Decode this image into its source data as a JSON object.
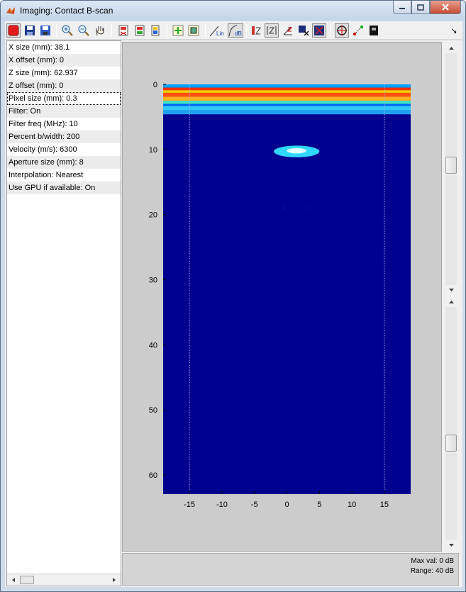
{
  "window": {
    "title": "Imaging: Contact B-scan",
    "app_icon": "matlab-icon",
    "buttons": [
      "minimize-icon",
      "maximize-icon",
      "close-icon"
    ]
  },
  "toolbar": {
    "items": [
      "record-icon",
      "save-as-icon",
      "save-icon",
      "zoom-in-icon",
      "zoom-out-icon",
      "pan-hand-icon",
      "export-figure-icon",
      "copy-figure-icon",
      "colorbar-icon",
      "data-cursor-icon",
      "select-region-icon",
      "linear-scale-icon",
      "db-scale-icon",
      "normalize-z-icon",
      "z-scale-icon",
      "angle-icon",
      "clear-mask-icon",
      "mask-icon",
      "crosshair-icon",
      "measure-icon",
      "colormap-icon"
    ],
    "labels": {
      "lin": "Lin",
      "db": "dB"
    },
    "expand_glyph": "↘"
  },
  "parameters": [
    {
      "label": "X size (mm): 38.1"
    },
    {
      "label": "X offset (mm): 0"
    },
    {
      "label": "Z size (mm): 62.937"
    },
    {
      "label": "Z offset (mm): 0"
    },
    {
      "label": "Pixel size (mm): 0.3"
    },
    {
      "label": "Filter: On"
    },
    {
      "label": "Filter freq (MHz): 10"
    },
    {
      "label": "Percent b/width: 200"
    },
    {
      "label": "Velocity (m/s): 6300"
    },
    {
      "label": "Aperture size (mm): 8"
    },
    {
      "label": "Interpolation: Nearest"
    },
    {
      "label": "Use GPU if available: On"
    }
  ],
  "selected_parameter": "Pixel size (mm): 0.3",
  "status": {
    "max_val": "Max val: 0 dB",
    "range": "Range: 40 dB"
  },
  "chart_data": {
    "type": "heatmap",
    "title": "",
    "xlabel": "",
    "ylabel": "",
    "xlim": [
      -19.05,
      19.05
    ],
    "ylim": [
      62.937,
      0
    ],
    "x_ticks": [
      -15,
      -10,
      -5,
      0,
      5,
      10,
      15
    ],
    "y_ticks": [
      0,
      10,
      20,
      30,
      40,
      50,
      60
    ],
    "colormap": "jet",
    "background_color": "#00008f",
    "guide_lines_x": [
      -15,
      15
    ],
    "bands": [
      {
        "z_from": 0.0,
        "z_to": 0.5,
        "color": "#00a0ff"
      },
      {
        "z_from": 0.5,
        "z_to": 0.9,
        "color": "#ff3000"
      },
      {
        "z_from": 0.9,
        "z_to": 1.3,
        "color": "#ffd000"
      },
      {
        "z_from": 1.3,
        "z_to": 1.9,
        "color": "#ff5010"
      },
      {
        "z_from": 1.9,
        "z_to": 2.5,
        "color": "#ffb020"
      },
      {
        "z_from": 2.5,
        "z_to": 3.0,
        "color": "#40e0c0"
      },
      {
        "z_from": 3.0,
        "z_to": 3.3,
        "color": "#0060ff"
      },
      {
        "z_from": 3.3,
        "z_to": 4.0,
        "color": "#30c8ff"
      },
      {
        "z_from": 4.0,
        "z_to": 4.6,
        "color": "#20a0f0"
      }
    ],
    "reflectors": [
      {
        "x": 1.5,
        "z": 10.3,
        "width": 7.0,
        "height": 0.9,
        "color": "#30d8ff"
      },
      {
        "x": 1.5,
        "z": 10.2,
        "width": 3.0,
        "height": 0.4,
        "color": "#e0ffff"
      }
    ],
    "faint_spots": [
      {
        "x": -0.5,
        "z": 19.0
      },
      {
        "x": 3.0,
        "z": 19.0
      }
    ]
  }
}
